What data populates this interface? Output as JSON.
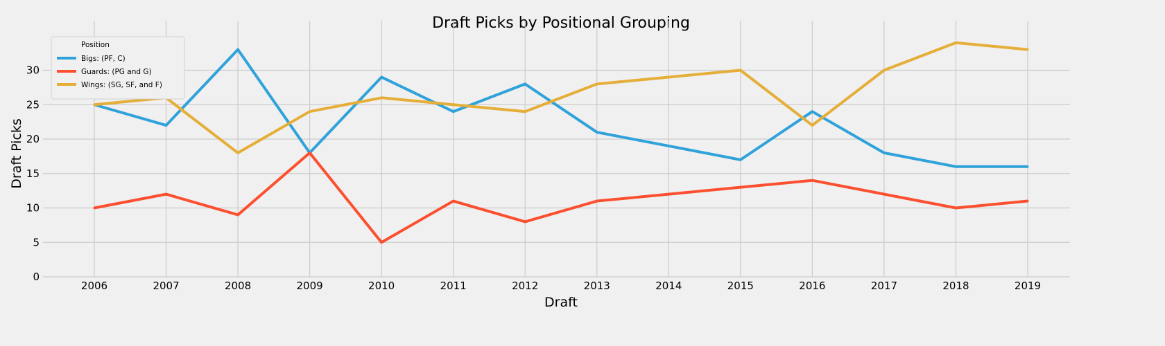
{
  "chart_data": {
    "type": "line",
    "title": "Draft Picks by Positional Grouping",
    "xlabel": "Draft",
    "ylabel": "Draft Picks",
    "x": [
      2006,
      2007,
      2008,
      2009,
      2010,
      2011,
      2012,
      2013,
      2014,
      2015,
      2016,
      2017,
      2018,
      2019
    ],
    "x_ticks": [
      "2006",
      "2007",
      "2008",
      "2009",
      "2010",
      "2011",
      "2012",
      "2013",
      "2014",
      "2015",
      "2016",
      "2017",
      "2018",
      "2019"
    ],
    "y_ticks": [
      "0",
      "5",
      "10",
      "15",
      "20",
      "25",
      "30"
    ],
    "ylim": [
      0,
      35
    ],
    "grid": true,
    "legend": {
      "title": "Position",
      "placement": "top-left"
    },
    "series": [
      {
        "name": "Bigs: (PF, C)",
        "color": "#30a2da",
        "values": [
          25,
          22,
          33,
          18,
          29,
          24,
          28,
          21,
          19,
          17,
          24,
          18,
          16,
          16
        ]
      },
      {
        "name": "Guards: (PG and G)",
        "color": "#fc4f30",
        "values": [
          10,
          12,
          9,
          18,
          5,
          11,
          8,
          11,
          12,
          13,
          14,
          12,
          10,
          11
        ]
      },
      {
        "name": "Wings: (SG, SF, and F)",
        "color": "#e5ae38",
        "values": [
          25,
          26,
          18,
          24,
          26,
          25,
          24,
          28,
          29,
          30,
          22,
          30,
          34,
          33
        ]
      }
    ]
  }
}
